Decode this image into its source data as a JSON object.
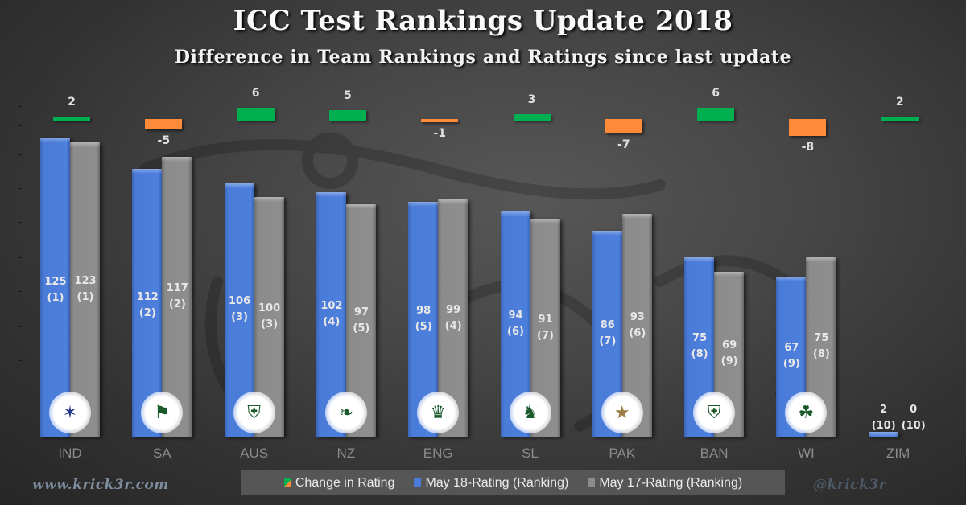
{
  "header": {
    "title": "ICC Test Rankings Update 2018",
    "subtitle": "Difference in Team Rankings and Ratings since last update"
  },
  "footer": {
    "website": "www.krick3r.com",
    "handle": "@krick3r"
  },
  "colors": {
    "may18": "#4A7BD8",
    "may17": "#8C8C8C",
    "positive_change": "#00B050",
    "negative_change": "#FF8A3A",
    "background": "#474747"
  },
  "legend": {
    "change": "Change in Rating",
    "may18": "May 18-Rating (Ranking)",
    "may17": "May 17-Rating (Ranking)"
  },
  "chart_data": {
    "type": "bar",
    "title": "ICC Test Rankings Update 2018",
    "subtitle": "Difference in Team Rankings and Ratings since last update",
    "xlabel": "",
    "ylabel": "",
    "ylim": [
      0,
      130
    ],
    "grid": false,
    "legend_position": "bottom",
    "categories": [
      "IND",
      "SA",
      "AUS",
      "NZ",
      "ENG",
      "SL",
      "PAK",
      "BAN",
      "WI",
      "ZIM"
    ],
    "series": [
      {
        "name": "May 18-Rating (Ranking)",
        "values": [
          125,
          112,
          106,
          102,
          98,
          94,
          86,
          75,
          67,
          2
        ],
        "rankings": [
          1,
          2,
          3,
          4,
          5,
          6,
          7,
          8,
          9,
          10
        ]
      },
      {
        "name": "May 17-Rating (Ranking)",
        "values": [
          123,
          117,
          100,
          97,
          99,
          91,
          93,
          69,
          75,
          0
        ],
        "rankings": [
          1,
          2,
          3,
          5,
          4,
          7,
          6,
          9,
          8,
          10
        ]
      },
      {
        "name": "Change in Rating",
        "values": [
          2,
          -5,
          6,
          5,
          -1,
          3,
          -7,
          6,
          -8,
          2
        ]
      }
    ],
    "logos": [
      "bcci-logo",
      "csa-logo",
      "cricket-australia-logo",
      "nz-cricket-logo",
      "ecb-logo",
      "sri-lanka-cricket-logo",
      "pcb-logo",
      "bcb-logo",
      "windies-logo",
      ""
    ]
  },
  "labels": {
    "IND": {
      "cat": "IND",
      "new": "125",
      "newRank": "(1)",
      "old": "123",
      "oldRank": "(1)",
      "chg": "2"
    },
    "SA": {
      "cat": "SA",
      "new": "112",
      "newRank": "(2)",
      "old": "117",
      "oldRank": "(2)",
      "chg": "-5"
    },
    "AUS": {
      "cat": "AUS",
      "new": "106",
      "newRank": "(3)",
      "old": "100",
      "oldRank": "(3)",
      "chg": "6"
    },
    "NZ": {
      "cat": "NZ",
      "new": "102",
      "newRank": "(4)",
      "old": "97",
      "oldRank": "(5)",
      "chg": "5"
    },
    "ENG": {
      "cat": "ENG",
      "new": "98",
      "newRank": "(5)",
      "old": "99",
      "oldRank": "(4)",
      "chg": "-1"
    },
    "SL": {
      "cat": "SL",
      "new": "94",
      "newRank": "(6)",
      "old": "91",
      "oldRank": "(7)",
      "chg": "3"
    },
    "PAK": {
      "cat": "PAK",
      "new": "86",
      "newRank": "(7)",
      "old": "93",
      "oldRank": "(6)",
      "chg": "-7"
    },
    "BAN": {
      "cat": "BAN",
      "new": "75",
      "newRank": "(8)",
      "old": "69",
      "oldRank": "(9)",
      "chg": "6"
    },
    "WI": {
      "cat": "WI",
      "new": "67",
      "newRank": "(9)",
      "old": "75",
      "oldRank": "(8)",
      "chg": "-8"
    },
    "ZIM": {
      "cat": "ZIM",
      "new": "2",
      "newRank": "(10)",
      "old": "0",
      "oldRank": "(10)",
      "chg": "2"
    }
  },
  "icons": {
    "IND": "✶",
    "SA": "⚑",
    "AUS": "⛨",
    "NZ": "❧",
    "ENG": "♛",
    "SL": "♞",
    "PAK": "★",
    "BAN": "⛨",
    "WI": "☘"
  }
}
